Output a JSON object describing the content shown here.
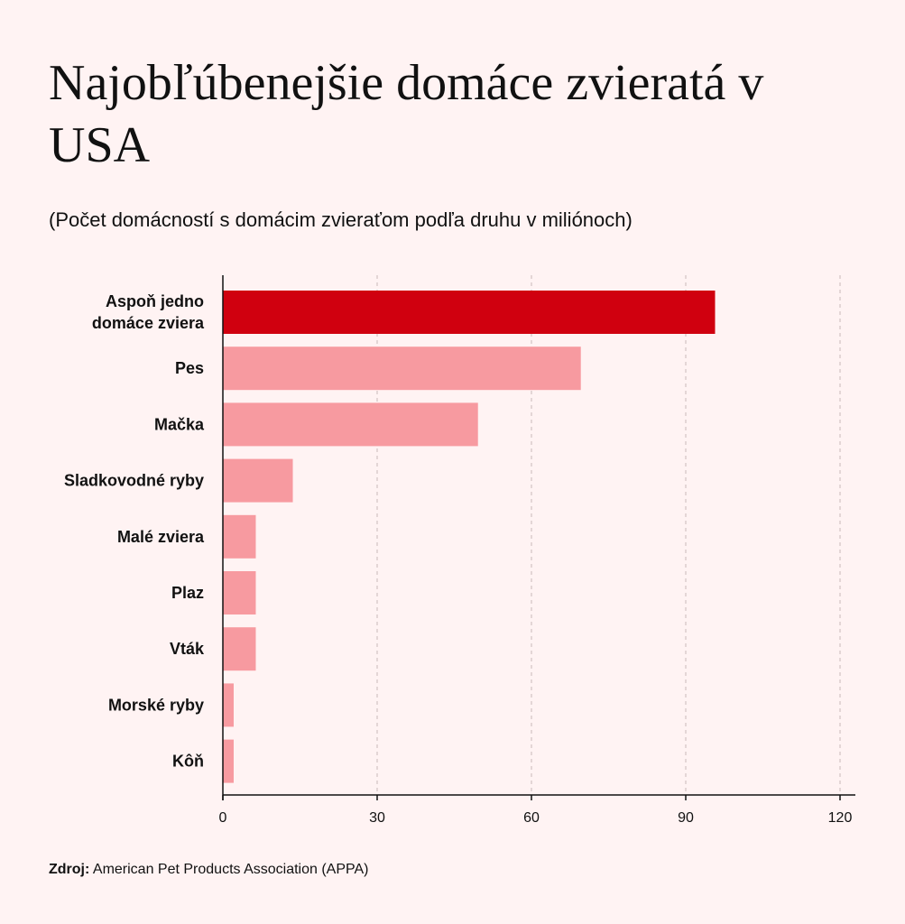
{
  "title": "Najobľúbenejšie domáce zvieratá v USA",
  "subtitle": "(Počet domácností s domácim zvieraťom podľa druhu v miliónoch)",
  "source": {
    "label": "Zdroj:",
    "text": "American Pet Products Association (APPA)"
  },
  "colors": {
    "highlight": "#d0000f",
    "bar": "#f79aa0",
    "grid": "#c9b8b8",
    "axis": "#111111"
  },
  "chart_data": {
    "type": "bar",
    "orientation": "horizontal",
    "categories": [
      [
        "Aspoň jedno",
        "domáce zviera"
      ],
      [
        "Pes"
      ],
      [
        "Mačka"
      ],
      [
        "Sladkovodné ryby"
      ],
      [
        "Malé zviera"
      ],
      [
        "Plaz"
      ],
      [
        "Vták"
      ],
      [
        "Morské ryby"
      ],
      [
        "Kôň"
      ]
    ],
    "values": [
      95.7,
      69.6,
      49.6,
      13.6,
      6.4,
      6.4,
      6.4,
      2.1,
      2.1
    ],
    "highlight_index": 0,
    "xlim": [
      0,
      120
    ],
    "xticks": [
      0,
      30,
      60,
      90,
      120
    ],
    "xlabel": "",
    "ylabel": "",
    "grid": "vertical-dashed",
    "legend": "none"
  }
}
